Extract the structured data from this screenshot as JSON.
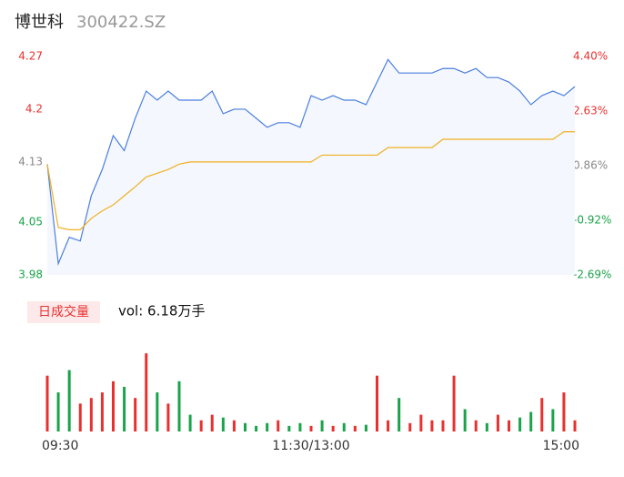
{
  "chart_data": [
    {
      "type": "line",
      "title": "博世科",
      "subtitle": "300422.SZ",
      "x": [
        0,
        5,
        10,
        15,
        20,
        25,
        30,
        35,
        40,
        45,
        50,
        55,
        60,
        65,
        70,
        75,
        80,
        85,
        90,
        95,
        100,
        105,
        110,
        115,
        120,
        125,
        130,
        135,
        140,
        145,
        150,
        155,
        160,
        165,
        170,
        175,
        180,
        185,
        190,
        195,
        200,
        205,
        210,
        215,
        220,
        225,
        230,
        235,
        240
      ],
      "xlim": [
        0,
        240
      ],
      "series": [
        {
          "color": "#4a7fe0",
          "values": [
            4.127,
            3.995,
            4.03,
            4.025,
            4.085,
            4.12,
            4.165,
            4.145,
            4.188,
            4.224,
            4.212,
            4.224,
            4.212,
            4.212,
            4.212,
            4.224,
            4.194,
            4.2,
            4.2,
            4.188,
            4.176,
            4.182,
            4.182,
            4.176,
            4.218,
            4.212,
            4.218,
            4.212,
            4.212,
            4.206,
            4.236,
            4.266,
            4.248,
            4.248,
            4.248,
            4.248,
            4.254,
            4.254,
            4.248,
            4.254,
            4.242,
            4.242,
            4.236,
            4.224,
            4.206,
            4.218,
            4.224,
            4.218,
            4.23
          ]
        },
        {
          "color": "#f0b020",
          "values": [
            4.127,
            4.043,
            4.04,
            4.04,
            4.055,
            4.065,
            4.073,
            4.085,
            4.097,
            4.11,
            4.115,
            4.12,
            4.127,
            4.13,
            4.13,
            4.13,
            4.13,
            4.13,
            4.13,
            4.13,
            4.13,
            4.13,
            4.13,
            4.13,
            4.13,
            4.139,
            4.139,
            4.139,
            4.139,
            4.139,
            4.139,
            4.149,
            4.149,
            4.149,
            4.149,
            4.149,
            4.16,
            4.16,
            4.16,
            4.16,
            4.16,
            4.16,
            4.16,
            4.16,
            4.16,
            4.16,
            4.16,
            4.17,
            4.17
          ]
        }
      ],
      "ylim": [
        3.98,
        4.27
      ],
      "yticks": [
        4.27,
        4.2,
        4.13,
        4.05,
        3.98
      ],
      "y2lim": [
        -2.69,
        4.4
      ],
      "y2ticks": [
        {
          "value": 4.4,
          "label": "4.40%"
        },
        {
          "value": 2.63,
          "label": "2.63%"
        },
        {
          "value": 0.86,
          "label": "0.86%"
        },
        {
          "value": -0.92,
          "label": "-0.92%"
        },
        {
          "value": -2.69,
          "label": "-2.69%"
        }
      ],
      "up_color": "#e8312f",
      "down_color": "#1aa34a",
      "flat_color": "#888888",
      "area_color": "#f4f7fd"
    },
    {
      "type": "bar",
      "title": "日成交量",
      "subtitle": "vol: 6.18万手",
      "x": [
        0,
        5,
        10,
        15,
        20,
        25,
        30,
        35,
        40,
        45,
        50,
        55,
        60,
        65,
        70,
        75,
        80,
        85,
        90,
        95,
        100,
        105,
        110,
        115,
        120,
        125,
        130,
        135,
        140,
        145,
        150,
        155,
        160,
        165,
        170,
        175,
        180,
        185,
        190,
        195,
        200,
        205,
        210,
        215,
        220,
        225,
        230,
        235,
        240
      ],
      "xlim": [
        0,
        240
      ],
      "values": [
        1000,
        700,
        1100,
        500,
        600,
        700,
        900,
        800,
        600,
        1400,
        700,
        500,
        900,
        300,
        200,
        300,
        250,
        200,
        150,
        100,
        150,
        200,
        100,
        150,
        100,
        200,
        100,
        150,
        100,
        120,
        1000,
        200,
        600,
        150,
        300,
        200,
        200,
        1000,
        400,
        200,
        150,
        300,
        200,
        250,
        350,
        600,
        400,
        700,
        200
      ],
      "colors": [
        "#e8312f",
        "#1aa34a",
        "#1aa34a",
        "#e8312f",
        "#e8312f",
        "#e8312f",
        "#e8312f",
        "#1aa34a",
        "#e8312f",
        "#e8312f",
        "#1aa34a",
        "#e8312f",
        "#1aa34a",
        "#1aa34a",
        "#e8312f",
        "#e8312f",
        "#1aa34a",
        "#e8312f",
        "#1aa34a",
        "#1aa34a",
        "#1aa34a",
        "#e8312f",
        "#1aa34a",
        "#1aa34a",
        "#e8312f",
        "#1aa34a",
        "#e8312f",
        "#1aa34a",
        "#e8312f",
        "#1aa34a",
        "#e8312f",
        "#e8312f",
        "#1aa34a",
        "#e8312f",
        "#e8312f",
        "#e8312f",
        "#e8312f",
        "#e8312f",
        "#1aa34a",
        "#e8312f",
        "#1aa34a",
        "#e8312f",
        "#e8312f",
        "#1aa34a",
        "#1aa34a",
        "#e8312f",
        "#1aa34a",
        "#e8312f",
        "#e8312f"
      ],
      "ylim": [
        0,
        1500
      ],
      "xticks": [
        {
          "value": 0,
          "label": "09:30"
        },
        {
          "value": 120,
          "label": "11:30/13:00"
        },
        {
          "value": 240,
          "label": "15:00"
        }
      ]
    }
  ]
}
